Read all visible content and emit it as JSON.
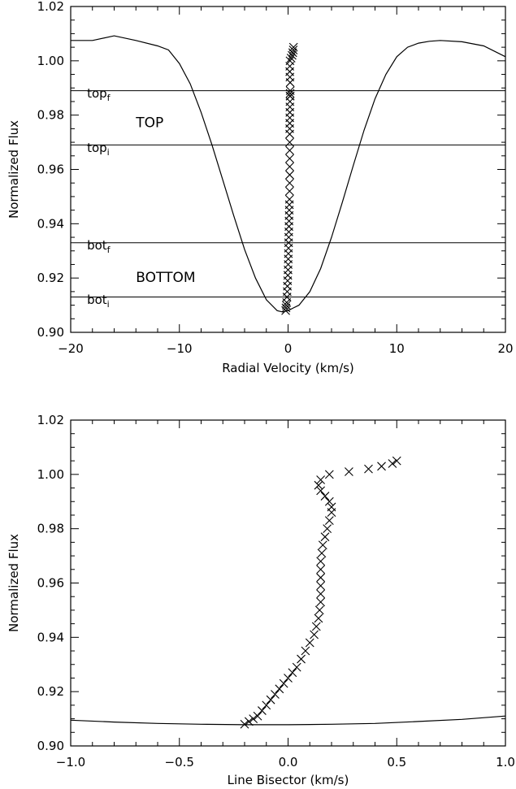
{
  "chart_data": [
    {
      "type": "line",
      "xlabel": "Radial Velocity (km/s)",
      "ylabel": "Normalized Flux",
      "xlim": [
        -20,
        20
      ],
      "ylim": [
        0.9,
        1.02
      ],
      "xticks": [
        -20,
        -10,
        0,
        10,
        20
      ],
      "xtick_labels": [
        "−20",
        "−10",
        "0",
        "10",
        "20"
      ],
      "yticks": [
        0.9,
        0.92,
        0.94,
        0.96,
        0.98,
        1.0,
        1.02
      ],
      "ytick_labels": [
        "0.90",
        "0.92",
        "0.94",
        "0.96",
        "0.98",
        "1.00",
        "1.02"
      ],
      "grid": false,
      "series": [
        {
          "style": "line",
          "x": [
            -20,
            -18,
            -16,
            -14,
            -12,
            -11,
            -10,
            -9,
            -8,
            -7,
            -6,
            -5,
            -4,
            -3,
            -2,
            -1,
            -0.5,
            0,
            0.5,
            1,
            2,
            3,
            4,
            5,
            6,
            7,
            8,
            9,
            10,
            11,
            12,
            13,
            14,
            16,
            18,
            20
          ],
          "y": [
            1.0075,
            1.0075,
            1.0092,
            1.0075,
            1.0055,
            1.004,
            0.999,
            0.9915,
            0.981,
            0.969,
            0.956,
            0.943,
            0.9305,
            0.92,
            0.912,
            0.908,
            0.9075,
            0.908,
            0.909,
            0.91,
            0.915,
            0.9235,
            0.935,
            0.948,
            0.9615,
            0.9745,
            0.986,
            0.995,
            1.0015,
            1.005,
            1.0065,
            1.0072,
            1.0075,
            1.007,
            1.0055,
            1.0015
          ]
        },
        {
          "style": "markers",
          "marker": "x",
          "x": [
            -0.22,
            -0.19,
            -0.16,
            -0.13,
            -0.1,
            -0.08,
            -0.06,
            -0.04,
            -0.02,
            0.0,
            0.01,
            0.02,
            0.03,
            0.04,
            0.05,
            0.06,
            0.07,
            0.08,
            0.09,
            0.1,
            0.11,
            0.12,
            0.13,
            0.14,
            0.145,
            0.15,
            0.15,
            0.15,
            0.15,
            0.15,
            0.15,
            0.15,
            0.155,
            0.16,
            0.165,
            0.17,
            0.175,
            0.18,
            0.19,
            0.2,
            0.2,
            0.19,
            0.17,
            0.155,
            0.16,
            0.18,
            0.28,
            0.37,
            0.43,
            0.48,
            0.5
          ],
          "y": [
            0.908,
            0.909,
            0.91,
            0.911,
            0.913,
            0.915,
            0.917,
            0.919,
            0.921,
            0.923,
            0.925,
            0.927,
            0.929,
            0.931,
            0.933,
            0.935,
            0.937,
            0.939,
            0.941,
            0.943,
            0.945,
            0.947,
            0.949,
            0.952,
            0.955,
            0.958,
            0.961,
            0.964,
            0.967,
            0.97,
            0.973,
            0.975,
            0.977,
            0.979,
            0.981,
            0.983,
            0.985,
            0.987,
            0.988,
            0.987,
            0.989,
            0.992,
            0.994,
            0.996,
            0.998,
            1.0,
            1.001,
            1.002,
            1.003,
            1.004,
            1.005
          ]
        }
      ],
      "hlines": [
        0.989,
        0.969,
        0.933,
        0.913
      ],
      "annotations": [
        {
          "base": "top",
          "sub": "f",
          "x": -18.5,
          "y": 0.9865
        },
        {
          "base": "top",
          "sub": "i",
          "x": -18.5,
          "y": 0.9665
        },
        {
          "base": "bot",
          "sub": "f",
          "x": -18.5,
          "y": 0.9305
        },
        {
          "base": "bot",
          "sub": "i",
          "x": -18.5,
          "y": 0.9105
        }
      ],
      "region_labels": [
        {
          "text": "TOP",
          "x": -14,
          "y": 0.9755
        },
        {
          "text": "BOTTOM",
          "x": -14,
          "y": 0.9185
        }
      ]
    },
    {
      "type": "scatter",
      "xlabel": "Line Bisector (km/s)",
      "ylabel": "Normalized Flux",
      "xlim": [
        -1.0,
        1.0
      ],
      "ylim": [
        0.9,
        1.02
      ],
      "xticks": [
        -1.0,
        -0.5,
        0.0,
        0.5,
        1.0
      ],
      "xtick_labels": [
        "−1.0",
        "−0.5",
        "0.0",
        "0.5",
        "1.0"
      ],
      "yticks": [
        0.9,
        0.92,
        0.94,
        0.96,
        0.98,
        1.0,
        1.02
      ],
      "ytick_labels": [
        "0.90",
        "0.92",
        "0.94",
        "0.96",
        "0.98",
        "1.00",
        "1.02"
      ],
      "grid": false,
      "series": [
        {
          "style": "markers",
          "marker": "x",
          "x": [
            -0.2,
            -0.18,
            -0.16,
            -0.14,
            -0.12,
            -0.1,
            -0.08,
            -0.06,
            -0.04,
            -0.02,
            0.0,
            0.02,
            0.04,
            0.06,
            0.08,
            0.1,
            0.12,
            0.13,
            0.14,
            0.145,
            0.15,
            0.15,
            0.15,
            0.15,
            0.15,
            0.15,
            0.155,
            0.16,
            0.17,
            0.18,
            0.19,
            0.2,
            0.2,
            0.19,
            0.17,
            0.15,
            0.14,
            0.15,
            0.19,
            0.28,
            0.37,
            0.43,
            0.48,
            0.5
          ],
          "y": [
            0.908,
            0.909,
            0.91,
            0.911,
            0.913,
            0.915,
            0.917,
            0.919,
            0.921,
            0.923,
            0.925,
            0.927,
            0.929,
            0.932,
            0.935,
            0.938,
            0.941,
            0.944,
            0.947,
            0.95,
            0.953,
            0.956,
            0.959,
            0.962,
            0.965,
            0.968,
            0.971,
            0.974,
            0.977,
            0.98,
            0.983,
            0.986,
            0.988,
            0.99,
            0.992,
            0.994,
            0.996,
            0.998,
            1.0,
            1.001,
            1.002,
            1.003,
            1.004,
            1.005
          ]
        },
        {
          "style": "line",
          "x": [
            -1.0,
            -0.8,
            -0.6,
            -0.4,
            -0.2,
            0.0,
            0.2,
            0.4,
            0.6,
            0.8,
            1.0
          ],
          "y": [
            0.9095,
            0.9088,
            0.9083,
            0.908,
            0.9078,
            0.9078,
            0.908,
            0.9083,
            0.909,
            0.9098,
            0.911
          ]
        }
      ]
    }
  ]
}
